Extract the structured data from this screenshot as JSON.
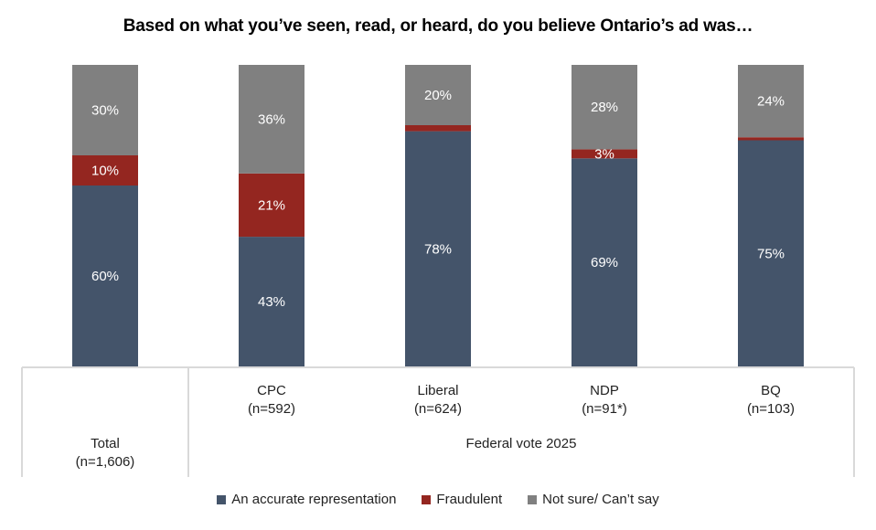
{
  "chart_data": {
    "type": "bar",
    "stacked": true,
    "title": "Based on what you’ve seen, read, or heard, do you believe Ontario’s ad was…",
    "xlabel": "",
    "ylabel": "",
    "ylim": [
      0,
      100
    ],
    "grid": false,
    "legend_position": "bottom",
    "categories": [
      {
        "name": "Total",
        "n": "(n=1,606)"
      },
      {
        "name": "CPC",
        "n": "(n=592)"
      },
      {
        "name": "Liberal",
        "n": "(n=624)"
      },
      {
        "name": "NDP",
        "n": "(n=91*)"
      },
      {
        "name": "BQ",
        "n": "(n=103)"
      }
    ],
    "group_label": "Federal vote 2025",
    "series": [
      {
        "name": "An accurate representation",
        "color": "#44546A",
        "values": [
          60,
          43,
          78,
          69,
          75
        ],
        "labels": [
          "60%",
          "43%",
          "78%",
          "69%",
          "75%"
        ]
      },
      {
        "name": "Fraudulent",
        "color": "#942620",
        "values": [
          10,
          21,
          2,
          3,
          1
        ],
        "labels": [
          "10%",
          "21%",
          "",
          "3%",
          ""
        ]
      },
      {
        "name": "Not sure/ Can’t say",
        "color": "#808080",
        "values": [
          30,
          36,
          20,
          28,
          24
        ],
        "labels": [
          "30%",
          "36%",
          "20%",
          "28%",
          "24%"
        ]
      }
    ]
  }
}
